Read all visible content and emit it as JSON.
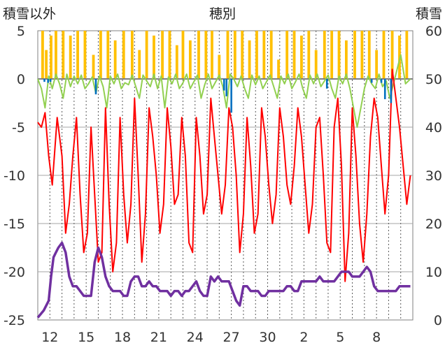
{
  "chart_data": {
    "type": "line",
    "title": "穂別",
    "left_axis": {
      "label": "積雪以外",
      "ylim": [
        -25,
        5
      ],
      "ticks": [
        5,
        0,
        -5,
        -10,
        -15,
        -20,
        -25
      ]
    },
    "right_axis": {
      "label": "積雪",
      "ylim": [
        0,
        60
      ],
      "ticks": [
        60,
        50,
        40,
        30,
        20,
        10,
        0
      ]
    },
    "x_tick_labels": [
      "12",
      "15",
      "18",
      "21",
      "24",
      "27",
      "30",
      "2",
      "5",
      "8"
    ],
    "x_range_days": [
      0,
      31
    ],
    "grid": "horizontal solid, vertical dotted (daily)",
    "colors": {
      "temperature": "#ff0000",
      "snow_depth": "#7030a0",
      "precip": "#ffc000",
      "wind": "#92d050",
      "blue_bars": "#0070c0"
    },
    "series": [
      {
        "key": "temperature",
        "axis": "left",
        "x": [
          0,
          0.3,
          0.6,
          0.9,
          1.2,
          1.6,
          2.0,
          2.3,
          2.6,
          2.9,
          3.2,
          3.5,
          3.8,
          4.1,
          4.4,
          4.7,
          5.0,
          5.3,
          5.6,
          5.9,
          6.2,
          6.5,
          6.8,
          7.1,
          7.4,
          7.7,
          8.0,
          8.3,
          8.6,
          8.9,
          9.2,
          9.5,
          9.8,
          10.1,
          10.4,
          10.7,
          11.0,
          11.3,
          11.6,
          11.9,
          12.2,
          12.5,
          12.8,
          13.1,
          13.4,
          13.7,
          14.0,
          14.3,
          14.6,
          14.9,
          15.2,
          15.5,
          15.8,
          16.1,
          16.4,
          16.7,
          17.0,
          17.3,
          17.6,
          17.9,
          18.2,
          18.5,
          18.8,
          19.1,
          19.4,
          19.7,
          20.0,
          20.3,
          20.6,
          20.9,
          21.2,
          21.5,
          21.8,
          22.1,
          22.4,
          22.7,
          23.0,
          23.3,
          23.6,
          23.9,
          24.2,
          24.5,
          24.8,
          25.1,
          25.4,
          25.7,
          26.0,
          26.3,
          26.6,
          26.9,
          27.2,
          27.5,
          27.8,
          28.1,
          28.4,
          28.7,
          29.0,
          29.3,
          29.6,
          29.9,
          30.2,
          30.5,
          30.8
        ],
        "values": [
          -4.5,
          -5,
          -3.5,
          -8,
          -11,
          -4,
          -8,
          -16,
          -13,
          -8,
          -4,
          -12,
          -18,
          -16,
          -5,
          -12,
          -19,
          -18,
          -3,
          -13,
          -20,
          -17,
          -4,
          -12,
          -17,
          -13,
          -2,
          -10,
          -19,
          -14,
          -3,
          -6,
          -10,
          -16,
          -13,
          -3,
          -7,
          -13,
          -12,
          -4,
          -8,
          -17,
          -18,
          -4,
          -8,
          -14,
          -12,
          -2,
          -6,
          -10,
          -14,
          -11,
          -3,
          -5,
          -10,
          -18,
          -14,
          -4,
          -9,
          -16,
          -14,
          -3,
          -6,
          -11,
          -15,
          -12,
          -3,
          -6,
          -11,
          -13,
          -9,
          -3,
          -6,
          -11,
          -16,
          -13,
          -5,
          -4,
          -10,
          -17,
          -18,
          -5,
          -2,
          -9,
          -21,
          -16,
          -3,
          -8,
          -15,
          -19,
          -14,
          -6,
          -2,
          -4,
          -9,
          -14,
          -10,
          1,
          -2,
          -5,
          -9,
          -13,
          -10
        ]
      },
      {
        "key": "snow_depth",
        "axis": "right",
        "x": [
          0,
          0.5,
          0.7,
          0.9,
          1.1,
          1.3,
          1.5,
          1.7,
          2.0,
          2.3,
          2.6,
          2.9,
          3.2,
          3.5,
          3.8,
          4.1,
          4.4,
          4.7,
          5.0,
          5.3,
          5.6,
          5.9,
          6.2,
          6.5,
          6.8,
          7.1,
          7.4,
          7.7,
          8.0,
          8.3,
          8.6,
          8.9,
          9.2,
          9.5,
          9.8,
          10.1,
          10.4,
          10.7,
          11.0,
          11.3,
          11.6,
          11.9,
          12.2,
          12.5,
          12.8,
          13.1,
          13.4,
          13.7,
          14.0,
          14.3,
          14.6,
          14.9,
          15.2,
          15.5,
          15.8,
          16.1,
          16.4,
          16.7,
          17.0,
          17.3,
          17.6,
          17.9,
          18.2,
          18.5,
          18.8,
          19.1,
          19.4,
          19.7,
          20.0,
          20.3,
          20.6,
          20.9,
          21.2,
          21.5,
          21.8,
          22.1,
          22.4,
          22.7,
          23.0,
          23.3,
          23.6,
          23.9,
          24.2,
          24.5,
          24.8,
          25.1,
          25.4,
          25.7,
          26.0,
          26.3,
          26.6,
          26.9,
          27.2,
          27.5,
          27.8,
          28.1,
          28.4,
          28.7,
          29.0,
          29.3,
          29.6,
          29.9,
          30.2,
          30.5,
          30.8
        ],
        "values": [
          0.5,
          2,
          3,
          4,
          9,
          13,
          14,
          15,
          16,
          14,
          9,
          7,
          7,
          6,
          5,
          5,
          5,
          12,
          15,
          13,
          9,
          7,
          6,
          6,
          6,
          5,
          5,
          8,
          9,
          9,
          7,
          7,
          8,
          7,
          7,
          6,
          6,
          6,
          5,
          6,
          6,
          5,
          6,
          6,
          7,
          8,
          6,
          5,
          5,
          9,
          8,
          9,
          8,
          8,
          8,
          6,
          4,
          3,
          7,
          7,
          6,
          6,
          6,
          5,
          5,
          6,
          6,
          6,
          6,
          6,
          7,
          7,
          6,
          6,
          8,
          8,
          8,
          8,
          8,
          9,
          8,
          8,
          8,
          8,
          9,
          10,
          10,
          10,
          9,
          9,
          9,
          10,
          11,
          10,
          7,
          6,
          6,
          6,
          6,
          6,
          6,
          7,
          7,
          7,
          7
        ]
      },
      {
        "key": "wind",
        "axis": "left",
        "x": [
          0,
          0.3,
          0.6,
          0.9,
          1.2,
          1.5,
          1.8,
          2.1,
          2.4,
          2.7,
          3.0,
          3.3,
          3.6,
          3.9,
          4.2,
          4.5,
          4.8,
          5.1,
          5.4,
          5.7,
          6.0,
          6.3,
          6.6,
          6.9,
          7.2,
          7.5,
          7.8,
          8.1,
          8.4,
          8.7,
          9.0,
          9.3,
          9.6,
          9.9,
          10.2,
          10.5,
          10.8,
          11.1,
          11.4,
          11.7,
          12.0,
          12.3,
          12.6,
          12.9,
          13.2,
          13.5,
          13.8,
          14.1,
          14.4,
          14.7,
          15.0,
          15.3,
          15.6,
          15.9,
          16.2,
          16.5,
          16.8,
          17.1,
          17.4,
          17.7,
          18.0,
          18.3,
          18.6,
          18.9,
          19.2,
          19.5,
          19.8,
          20.1,
          20.4,
          20.7,
          21.0,
          21.3,
          21.6,
          21.9,
          22.2,
          22.5,
          22.8,
          23.1,
          23.4,
          23.7,
          24.0,
          24.3,
          24.6,
          24.9,
          25.2,
          25.5,
          25.8,
          26.1,
          26.4,
          26.7,
          27.0,
          27.3,
          27.6,
          27.9,
          28.2,
          28.5,
          28.8,
          29.1,
          29.6,
          30.0,
          30.4,
          30.8
        ],
        "values": [
          0,
          -1,
          -3,
          0.3,
          -1,
          0.5,
          -0.5,
          -2,
          0.5,
          -0.8,
          0.3,
          -0.5,
          0.4,
          -1,
          -0.5,
          0.2,
          -1.5,
          0.3,
          -0.8,
          -3,
          0.3,
          -0.5,
          0.5,
          -1,
          -0.4,
          -0.6,
          0.4,
          -0.8,
          -2,
          0.4,
          -0.2,
          -0.8,
          0.5,
          -1,
          0.3,
          -3,
          0.2,
          -0.5,
          0.5,
          -1,
          -0.4,
          0.5,
          -1,
          -0.3,
          0.4,
          -2,
          -0.6,
          0.5,
          -1,
          -0.3,
          0.4,
          -0.8,
          -3,
          0.5,
          0,
          -0.8,
          0.3,
          -1,
          -2,
          0.4,
          -0.6,
          0.3,
          -1,
          -0.3,
          0.4,
          -0.8,
          -2,
          0.3,
          -0.5,
          0.5,
          -1,
          -0.3,
          0.5,
          -1,
          -2,
          0.4,
          -0.5,
          0.5,
          -0.8,
          -0.2,
          0.4,
          -1,
          -2,
          0.3,
          -0.5,
          0.5,
          -1,
          -3,
          -5,
          -3,
          -1,
          0.3,
          -0.5,
          -1,
          0.5,
          -0.8,
          -0.2,
          -2,
          0.5,
          2.5,
          -0.5,
          0
        ]
      }
    ],
    "precip_bars": {
      "key": "precip",
      "axis": "left",
      "baseline": 0,
      "bar_width_days": 0.22,
      "x": [
        0.4,
        0.7,
        1.1,
        1.5,
        2.1,
        2.7,
        3.3,
        3.9,
        4.6,
        5.2,
        5.8,
        6.4,
        7.1,
        7.8,
        8.4,
        9.0,
        9.6,
        10.3,
        10.9,
        11.5,
        12.0,
        12.6,
        13.3,
        13.9,
        14.4,
        15.0,
        15.7,
        16.3,
        16.9,
        17.5,
        18.1,
        18.7,
        19.3,
        19.9,
        20.6,
        21.2,
        21.8,
        22.4,
        23.0,
        23.7,
        24.3,
        24.9,
        25.5,
        26.2,
        26.8,
        27.4,
        28.0,
        28.6,
        29.3,
        29.9,
        30.5
      ],
      "values": [
        5,
        3,
        4.5,
        5,
        5,
        4.5,
        5,
        5,
        2.5,
        5,
        5,
        4,
        5,
        5,
        3,
        5,
        4.5,
        5,
        5,
        3.5,
        5,
        4,
        5,
        5,
        5,
        2.5,
        5,
        5,
        5,
        4,
        5,
        5,
        5,
        2,
        5,
        5,
        4.5,
        5,
        3,
        5,
        5,
        5,
        4,
        5,
        5,
        5,
        3,
        5,
        5,
        4.5,
        5
      ]
    },
    "blue_bars": {
      "key": "blue_bars",
      "axis": "left",
      "baseline": 0,
      "bar_width_days": 0.15,
      "x": [
        0.55,
        0.85,
        1.05,
        4.8,
        15.4,
        15.6,
        16.0,
        23.9,
        27.6,
        28.4,
        28.7,
        29.2
      ],
      "values": [
        -0.3,
        -0.4,
        -0.3,
        -1.6,
        -1.2,
        -1.8,
        -3.5,
        -1.0,
        -0.4,
        -0.4,
        -2.1,
        -2.5
      ]
    }
  }
}
